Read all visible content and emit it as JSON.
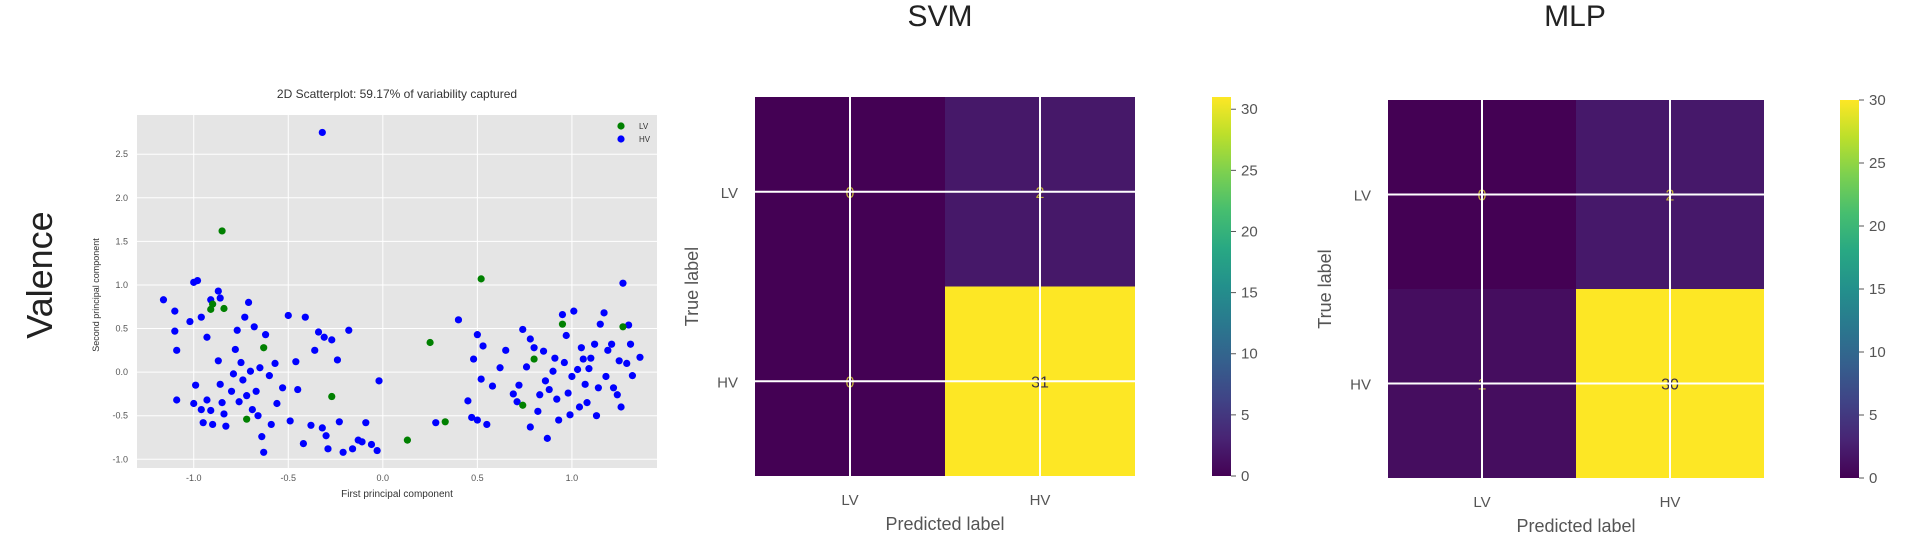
{
  "row_label": "Valence",
  "chart_data": [
    {
      "type": "scatter",
      "title": "2D Scatterplot: 59.17% of variability captured",
      "xlabel": "First principal component",
      "ylabel": "Second principal component",
      "xlim": [
        -1.3,
        1.45
      ],
      "ylim": [
        -1.1,
        2.95
      ],
      "xticks": [
        "-1.0",
        "-0.5",
        "0.0",
        "0.5",
        "1.0"
      ],
      "xtick_values": [
        -1.0,
        -0.5,
        0.0,
        0.5,
        1.0
      ],
      "yticks": [
        "-1.0",
        "-0.5",
        "0.0",
        "0.5",
        "1.0",
        "1.5",
        "2.0",
        "2.5"
      ],
      "ytick_values": [
        -1.0,
        -0.5,
        0.0,
        0.5,
        1.0,
        1.5,
        2.0,
        2.5
      ],
      "grid": true,
      "legend_position": "top-right",
      "series": [
        {
          "name": "LV",
          "color": "#008000",
          "points": [
            [
              -0.85,
              1.62
            ],
            [
              -0.9,
              0.78
            ],
            [
              -0.84,
              0.73
            ],
            [
              -0.91,
              0.72
            ],
            [
              -0.63,
              0.28
            ],
            [
              -0.72,
              -0.54
            ],
            [
              -0.27,
              -0.28
            ],
            [
              0.52,
              1.07
            ],
            [
              0.25,
              0.34
            ],
            [
              0.13,
              -0.78
            ],
            [
              0.33,
              -0.57
            ],
            [
              0.8,
              0.15
            ],
            [
              0.74,
              -0.38
            ],
            [
              0.95,
              0.55
            ],
            [
              1.27,
              0.52
            ]
          ]
        },
        {
          "name": "HV",
          "color": "#0000ff",
          "points": [
            [
              -0.32,
              2.75
            ],
            [
              -1.16,
              0.83
            ],
            [
              -1.1,
              0.7
            ],
            [
              -1.1,
              0.47
            ],
            [
              -1.09,
              0.25
            ],
            [
              -1.09,
              -0.32
            ],
            [
              -1.02,
              0.58
            ],
            [
              -1.0,
              1.03
            ],
            [
              -0.98,
              1.05
            ],
            [
              -0.96,
              0.63
            ],
            [
              -0.93,
              0.4
            ],
            [
              -0.91,
              0.83
            ],
            [
              -0.87,
              0.93
            ],
            [
              -0.86,
              0.85
            ],
            [
              -1.0,
              -0.36
            ],
            [
              -0.99,
              -0.15
            ],
            [
              -0.96,
              -0.43
            ],
            [
              -0.95,
              -0.58
            ],
            [
              -0.93,
              -0.32
            ],
            [
              -0.91,
              -0.44
            ],
            [
              -0.9,
              -0.6
            ],
            [
              -0.87,
              0.13
            ],
            [
              -0.86,
              -0.14
            ],
            [
              -0.85,
              -0.35
            ],
            [
              -0.84,
              -0.48
            ],
            [
              -0.83,
              -0.62
            ],
            [
              -0.8,
              -0.22
            ],
            [
              -0.79,
              -0.02
            ],
            [
              -0.78,
              0.26
            ],
            [
              -0.77,
              0.48
            ],
            [
              -0.76,
              -0.34
            ],
            [
              -0.75,
              0.11
            ],
            [
              -0.74,
              -0.09
            ],
            [
              -0.73,
              0.63
            ],
            [
              -0.72,
              -0.27
            ],
            [
              -0.71,
              0.8
            ],
            [
              -0.7,
              0.01
            ],
            [
              -0.69,
              -0.43
            ],
            [
              -0.68,
              0.52
            ],
            [
              -0.67,
              -0.22
            ],
            [
              -0.66,
              -0.5
            ],
            [
              -0.65,
              0.05
            ],
            [
              -0.64,
              -0.74
            ],
            [
              -0.63,
              -0.92
            ],
            [
              -0.62,
              0.43
            ],
            [
              -0.6,
              -0.04
            ],
            [
              -0.59,
              -0.6
            ],
            [
              -0.57,
              0.1
            ],
            [
              -0.56,
              -0.36
            ],
            [
              -0.53,
              -0.18
            ],
            [
              -0.5,
              0.65
            ],
            [
              -0.49,
              -0.56
            ],
            [
              -0.46,
              0.12
            ],
            [
              -0.45,
              -0.2
            ],
            [
              -0.42,
              -0.82
            ],
            [
              -0.41,
              0.63
            ],
            [
              -0.38,
              -0.61
            ],
            [
              -0.36,
              0.25
            ],
            [
              -0.34,
              0.46
            ],
            [
              -0.32,
              -0.64
            ],
            [
              -0.31,
              0.4
            ],
            [
              -0.3,
              -0.73
            ],
            [
              -0.29,
              -0.88
            ],
            [
              -0.27,
              0.37
            ],
            [
              -0.24,
              0.14
            ],
            [
              -0.23,
              -0.57
            ],
            [
              -0.21,
              -0.92
            ],
            [
              -0.18,
              0.48
            ],
            [
              -0.16,
              -0.88
            ],
            [
              -0.13,
              -0.78
            ],
            [
              -0.11,
              -0.8
            ],
            [
              -0.09,
              -0.58
            ],
            [
              -0.06,
              -0.83
            ],
            [
              -0.03,
              -0.9
            ],
            [
              -0.02,
              -0.1
            ],
            [
              0.28,
              -0.58
            ],
            [
              0.4,
              0.6
            ],
            [
              0.45,
              -0.33
            ],
            [
              0.47,
              -0.52
            ],
            [
              0.48,
              0.15
            ],
            [
              0.5,
              -0.55
            ],
            [
              0.5,
              0.43
            ],
            [
              0.52,
              -0.08
            ],
            [
              0.53,
              0.3
            ],
            [
              0.55,
              -0.6
            ],
            [
              0.58,
              -0.16
            ],
            [
              0.62,
              0.05
            ],
            [
              0.65,
              0.25
            ],
            [
              0.69,
              -0.25
            ],
            [
              0.71,
              -0.34
            ],
            [
              0.72,
              -0.15
            ],
            [
              0.74,
              0.49
            ],
            [
              0.76,
              0.06
            ],
            [
              0.78,
              0.38
            ],
            [
              0.78,
              -0.63
            ],
            [
              0.8,
              0.28
            ],
            [
              0.82,
              -0.45
            ],
            [
              0.83,
              -0.26
            ],
            [
              0.85,
              0.24
            ],
            [
              0.86,
              -0.1
            ],
            [
              0.87,
              -0.76
            ],
            [
              0.88,
              -0.2
            ],
            [
              0.9,
              0.01
            ],
            [
              0.91,
              0.16
            ],
            [
              0.92,
              -0.31
            ],
            [
              0.93,
              -0.55
            ],
            [
              0.95,
              0.66
            ],
            [
              0.96,
              0.11
            ],
            [
              0.97,
              0.42
            ],
            [
              0.98,
              -0.24
            ],
            [
              0.99,
              -0.49
            ],
            [
              1.0,
              -0.05
            ],
            [
              1.01,
              0.7
            ],
            [
              1.03,
              0.03
            ],
            [
              1.04,
              -0.4
            ],
            [
              1.05,
              0.28
            ],
            [
              1.06,
              0.15
            ],
            [
              1.07,
              -0.14
            ],
            [
              1.08,
              -0.35
            ],
            [
              1.09,
              0.04
            ],
            [
              1.1,
              0.16
            ],
            [
              1.12,
              0.32
            ],
            [
              1.13,
              -0.5
            ],
            [
              1.14,
              -0.18
            ],
            [
              1.15,
              0.55
            ],
            [
              1.17,
              0.68
            ],
            [
              1.18,
              -0.05
            ],
            [
              1.19,
              0.25
            ],
            [
              1.21,
              0.32
            ],
            [
              1.22,
              -0.18
            ],
            [
              1.24,
              -0.26
            ],
            [
              1.25,
              0.13
            ],
            [
              1.26,
              -0.4
            ],
            [
              1.27,
              1.02
            ],
            [
              1.29,
              0.1
            ],
            [
              1.3,
              0.54
            ],
            [
              1.31,
              0.32
            ],
            [
              1.32,
              -0.04
            ],
            [
              1.36,
              0.17
            ]
          ]
        }
      ]
    },
    {
      "type": "heatmap",
      "title": "SVM",
      "xlabel": "Predicted label",
      "ylabel": "True label",
      "x_categories": [
        "LV",
        "HV"
      ],
      "y_categories": [
        "LV",
        "HV"
      ],
      "values": [
        [
          0,
          2
        ],
        [
          0,
          31
        ]
      ],
      "colorbar_range": [
        0,
        31
      ],
      "colorbar_ticks": [
        "0",
        "5",
        "10",
        "15",
        "20",
        "25",
        "30"
      ],
      "colormap": "viridis"
    },
    {
      "type": "heatmap",
      "title": "MLP",
      "xlabel": "Predicted label",
      "ylabel": "True label",
      "x_categories": [
        "LV",
        "HV"
      ],
      "y_categories": [
        "LV",
        "HV"
      ],
      "values": [
        [
          0,
          2
        ],
        [
          1,
          30
        ]
      ],
      "colorbar_range": [
        0,
        30
      ],
      "colorbar_ticks": [
        "0",
        "5",
        "10",
        "15",
        "20",
        "25",
        "30"
      ],
      "colormap": "viridis"
    }
  ]
}
